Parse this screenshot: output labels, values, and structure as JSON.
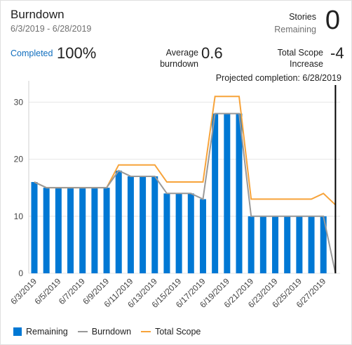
{
  "header": {
    "title": "Burndown",
    "date_range": "6/3/2019 - 6/28/2019",
    "stories_label": "Stories",
    "remaining_label": "Remaining",
    "remaining_value": "0"
  },
  "stats": {
    "completed_label": "Completed",
    "completed_value": "100%",
    "average_label_1": "Average",
    "average_label_2": "burndown",
    "average_value": "0.6",
    "scope_label_1": "Total Scope",
    "scope_label_2": "Increase",
    "scope_value": "-4"
  },
  "projected_completion": "Projected completion: 6/28/2019",
  "legend": {
    "remaining": "Remaining",
    "burndown": "Burndown",
    "total_scope": "Total Scope"
  },
  "colors": {
    "remaining": "#0078d4",
    "burndown": "#999999",
    "total_scope": "#f7a33a",
    "accent": "#106ebe"
  },
  "chart_data": {
    "type": "bar",
    "x": [
      "6/3/2019",
      "6/4/2019",
      "6/5/2019",
      "6/6/2019",
      "6/7/2019",
      "6/8/2019",
      "6/9/2019",
      "6/10/2019",
      "6/11/2019",
      "6/12/2019",
      "6/13/2019",
      "6/14/2019",
      "6/15/2019",
      "6/16/2019",
      "6/17/2019",
      "6/18/2019",
      "6/19/2019",
      "6/20/2019",
      "6/21/2019",
      "6/22/2019",
      "6/23/2019",
      "6/24/2019",
      "6/25/2019",
      "6/26/2019",
      "6/27/2019",
      "6/28/2019"
    ],
    "x_tick_labels": [
      "6/3/2019",
      "6/5/2019",
      "6/7/2019",
      "6/9/2019",
      "6/11/2019",
      "6/13/2019",
      "6/15/2019",
      "6/17/2019",
      "6/19/2019",
      "6/21/2019",
      "6/23/2019",
      "6/25/2019",
      "6/27/2019"
    ],
    "series": [
      {
        "name": "Remaining",
        "type": "bar",
        "values": [
          16,
          15,
          15,
          15,
          15,
          15,
          15,
          18,
          17,
          17,
          17,
          14,
          14,
          14,
          13,
          28,
          28,
          28,
          10,
          10,
          10,
          10,
          10,
          10,
          10,
          null
        ]
      },
      {
        "name": "Burndown",
        "type": "line",
        "values": [
          16,
          15,
          15,
          15,
          15,
          15,
          15,
          18,
          17,
          17,
          17,
          14,
          14,
          14,
          13,
          28,
          28,
          28,
          10,
          10,
          10,
          10,
          10,
          10,
          10,
          0
        ]
      },
      {
        "name": "Total Scope",
        "type": "line",
        "values": [
          16,
          15,
          15,
          15,
          15,
          15,
          15,
          19,
          19,
          19,
          19,
          16,
          16,
          16,
          16,
          31,
          31,
          31,
          13,
          13,
          13,
          13,
          13,
          13,
          14,
          12
        ]
      }
    ],
    "y_ticks": [
      0,
      10,
      20,
      30
    ],
    "ylim": [
      0,
      33
    ],
    "grid": true,
    "legend_position": "bottom-left"
  }
}
